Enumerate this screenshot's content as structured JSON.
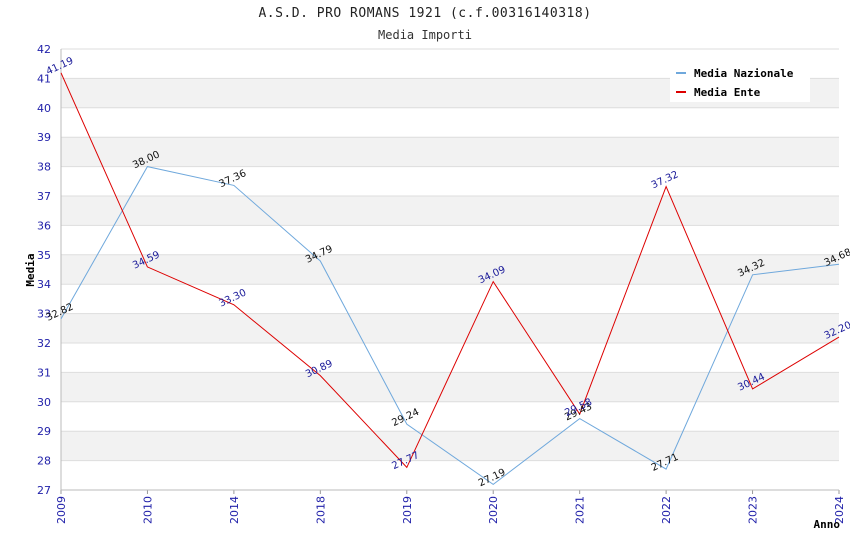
{
  "header": {
    "title": "A.S.D. PRO ROMANS 1921 (c.f.00316140318)",
    "subtitle": "Media Importi"
  },
  "chart_data": {
    "type": "line",
    "title": "A.S.D. PRO ROMANS 1921 (c.f.00316140318)",
    "subtitle": "Media Importi",
    "xlabel": "Anno",
    "ylabel": "Media",
    "categories": [
      "2009",
      "2010",
      "2014",
      "2018",
      "2019",
      "2020",
      "2021",
      "2022",
      "2023",
      "2024"
    ],
    "ylim": [
      27,
      42
    ],
    "yticks": [
      27,
      28,
      29,
      30,
      31,
      32,
      33,
      34,
      35,
      36,
      37,
      38,
      39,
      40,
      41,
      42
    ],
    "grid": true,
    "legend_position": "top-right",
    "series": [
      {
        "name": "Media Nazionale",
        "color": "#6fa8dc",
        "values": [
          32.82,
          38.0,
          37.36,
          34.79,
          29.24,
          27.19,
          29.43,
          27.71,
          34.32,
          34.68
        ],
        "labels": [
          "32.82",
          "38.00",
          "37.36",
          "34.79",
          "29.24",
          "27.19",
          "29.43",
          "27.71",
          "34.32",
          "34.68"
        ]
      },
      {
        "name": "Media Ente",
        "color": "#dd0000",
        "values": [
          41.19,
          34.59,
          33.3,
          30.89,
          27.77,
          34.09,
          29.58,
          37.32,
          30.44,
          32.2
        ],
        "labels": [
          "41.19",
          "34.59",
          "33.30",
          "30.89",
          "27.77",
          "34.09",
          "29.58",
          "37.32",
          "30.44",
          "32.20"
        ]
      }
    ]
  }
}
